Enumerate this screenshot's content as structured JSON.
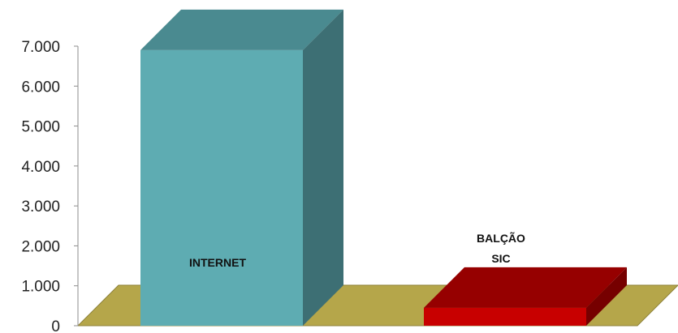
{
  "chart_data": {
    "type": "bar",
    "style": "3d-column",
    "categories": [
      "INTERNET",
      "BALÇÃO SIC"
    ],
    "category_label_lines": [
      [
        "INTERNET"
      ],
      [
        "BALÇÃO",
        "SIC"
      ]
    ],
    "values": [
      6900,
      450
    ],
    "ylim": [
      0,
      7000
    ],
    "yticks": [
      0,
      1000,
      2000,
      3000,
      4000,
      5000,
      6000,
      7000
    ],
    "ytick_labels": [
      "0",
      "1.000",
      "2.000",
      "3.000",
      "4.000",
      "5.000",
      "6.000",
      "7.000"
    ],
    "title": "",
    "xlabel": "",
    "ylabel": "",
    "grid": false,
    "legend": "none",
    "colors": {
      "floor": "#b5a64a",
      "floor_edge": "#8e823a",
      "axis": "#8c8c8c",
      "bars": [
        {
          "front": "#5eacb2",
          "top": "#4a8a90",
          "side": "#3d6f74"
        },
        {
          "front": "#c80000",
          "top": "#960000",
          "side": "#760000"
        }
      ]
    }
  }
}
